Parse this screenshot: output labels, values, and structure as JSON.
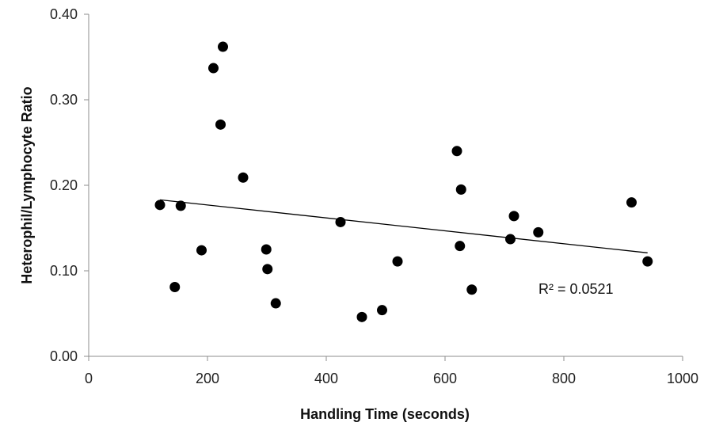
{
  "chart_data": {
    "type": "scatter",
    "title": "",
    "xlabel": "Handling Time (seconds)",
    "ylabel": "Heterophil/Lymphocyte Ratio",
    "xlim": [
      0,
      1000
    ],
    "ylim": [
      0,
      0.4
    ],
    "x_ticks": [
      0,
      200,
      400,
      600,
      800,
      1000
    ],
    "x_tick_labels": [
      "0",
      "200",
      "400",
      "600",
      "800",
      "1000"
    ],
    "y_ticks": [
      0,
      0.1,
      0.2,
      0.3,
      0.4
    ],
    "y_tick_labels": [
      "0.00",
      "0.10",
      "0.20",
      "0.30",
      "0.40"
    ],
    "grid": false,
    "legend": "none",
    "marker_color": "#000000",
    "trendline_color": "#000000",
    "points": [
      {
        "x": 120,
        "y": 0.177
      },
      {
        "x": 145,
        "y": 0.081
      },
      {
        "x": 155,
        "y": 0.176
      },
      {
        "x": 190,
        "y": 0.124
      },
      {
        "x": 210,
        "y": 0.337
      },
      {
        "x": 222,
        "y": 0.271
      },
      {
        "x": 226,
        "y": 0.362
      },
      {
        "x": 260,
        "y": 0.209
      },
      {
        "x": 299,
        "y": 0.125
      },
      {
        "x": 301,
        "y": 0.102
      },
      {
        "x": 315,
        "y": 0.062
      },
      {
        "x": 424,
        "y": 0.157
      },
      {
        "x": 460,
        "y": 0.046
      },
      {
        "x": 494,
        "y": 0.054
      },
      {
        "x": 520,
        "y": 0.111
      },
      {
        "x": 620,
        "y": 0.24
      },
      {
        "x": 625,
        "y": 0.129
      },
      {
        "x": 627,
        "y": 0.195
      },
      {
        "x": 645,
        "y": 0.078
      },
      {
        "x": 710,
        "y": 0.137
      },
      {
        "x": 716,
        "y": 0.164
      },
      {
        "x": 757,
        "y": 0.145
      },
      {
        "x": 914,
        "y": 0.18
      },
      {
        "x": 941,
        "y": 0.111
      }
    ],
    "trendline": {
      "type": "linear",
      "x": [
        120,
        941
      ],
      "y": [
        0.183,
        0.121
      ],
      "r_squared_label": "R² = 0.0521"
    }
  }
}
